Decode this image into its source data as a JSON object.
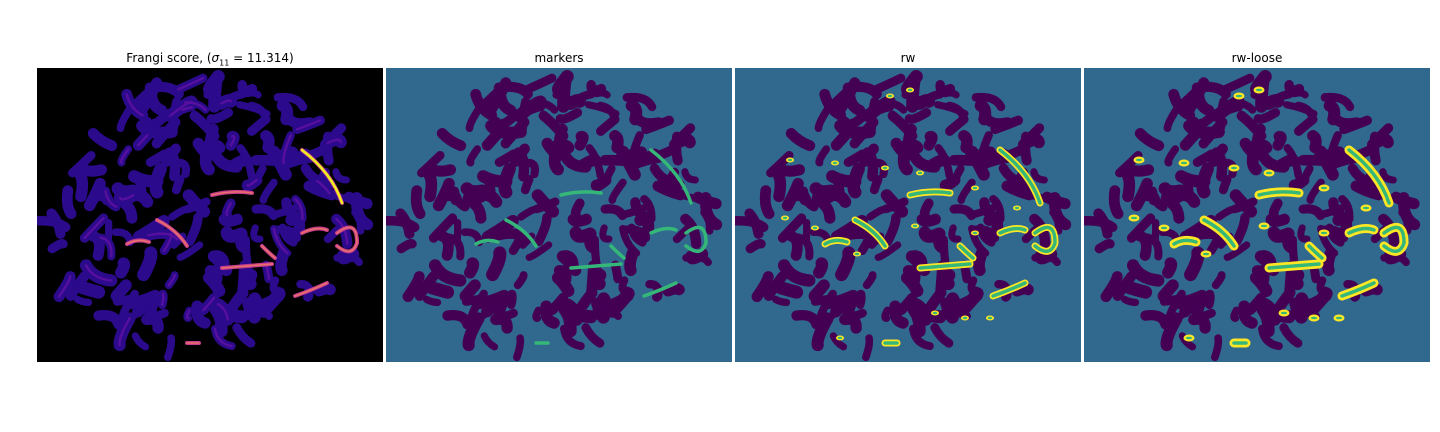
{
  "figure": {
    "panels": [
      {
        "title_prefix": "Frangi score, (",
        "title_symbol": "σ",
        "title_sub": "11",
        "title_suffix": " = 11.314)",
        "colormap": "plasma"
      },
      {
        "title": "markers",
        "colormap": "viridis"
      },
      {
        "title": "rw",
        "colormap": "viridis"
      },
      {
        "title": "rw-loose",
        "colormap": "viridis"
      }
    ]
  },
  "colors": {
    "frangi_background": "#000000",
    "frangi_cells": "#2b0a8c",
    "frangi_low": "#5b10a0",
    "frangi_mid": "#c63c8d",
    "frangi_high": "#f0f021",
    "seg_background": "#31688e",
    "seg_cells": "#440154",
    "seg_marker": "#35b779",
    "seg_outline": "#fde725"
  }
}
